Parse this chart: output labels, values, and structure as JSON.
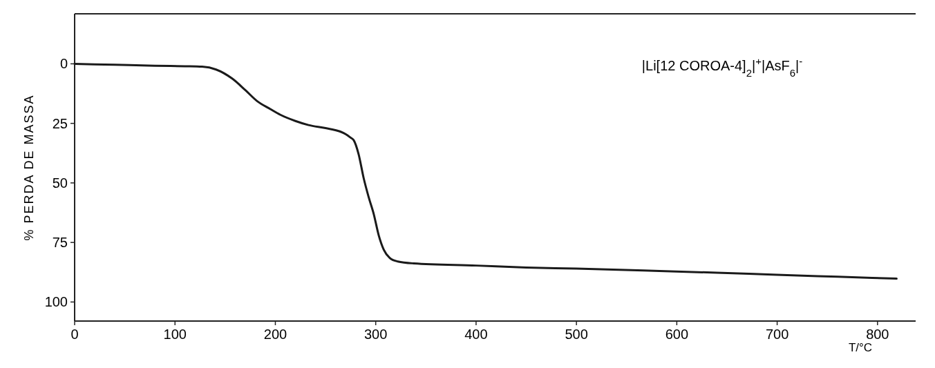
{
  "chart_data": {
    "type": "line",
    "xlabel": "T/°C",
    "ylabel": "% PERDA DE MASSA",
    "annotations": [
      "|Li[12 COROA-4]$_{2}$|$^{+}$|AsF$_{6}$|$^{-}$"
    ],
    "xlim": [
      0,
      838
    ],
    "xticks": [
      0,
      100,
      200,
      300,
      400,
      500,
      600,
      700,
      800
    ],
    "ylim": [
      108,
      -21
    ],
    "yticks": [
      0,
      25,
      50,
      75,
      100
    ],
    "grid": false,
    "marker": "none",
    "line_style": "solid",
    "series": [
      {
        "color": "#1a1a1a",
        "x": [
          0,
          40,
          80,
          110,
          127,
          141,
          157,
          170,
          182,
          195,
          205,
          220,
          233,
          250,
          265,
          270,
          275,
          278,
          283,
          288,
          293,
          298,
          303,
          308,
          314,
          322,
          338,
          400,
          450,
          500,
          567,
          640,
          700,
          760,
          819
        ],
        "values": [
          0,
          0.4,
          0.8,
          1.0,
          1.2,
          2.4,
          6.2,
          11,
          15.7,
          19,
          21.4,
          24,
          25.7,
          27,
          28.5,
          29.5,
          31,
          32,
          38,
          48,
          56,
          63,
          72,
          78,
          81.5,
          83,
          83.8,
          84.7,
          85.5,
          86,
          86.8,
          87.7,
          88.6,
          89.4,
          90.2
        ]
      }
    ]
  }
}
